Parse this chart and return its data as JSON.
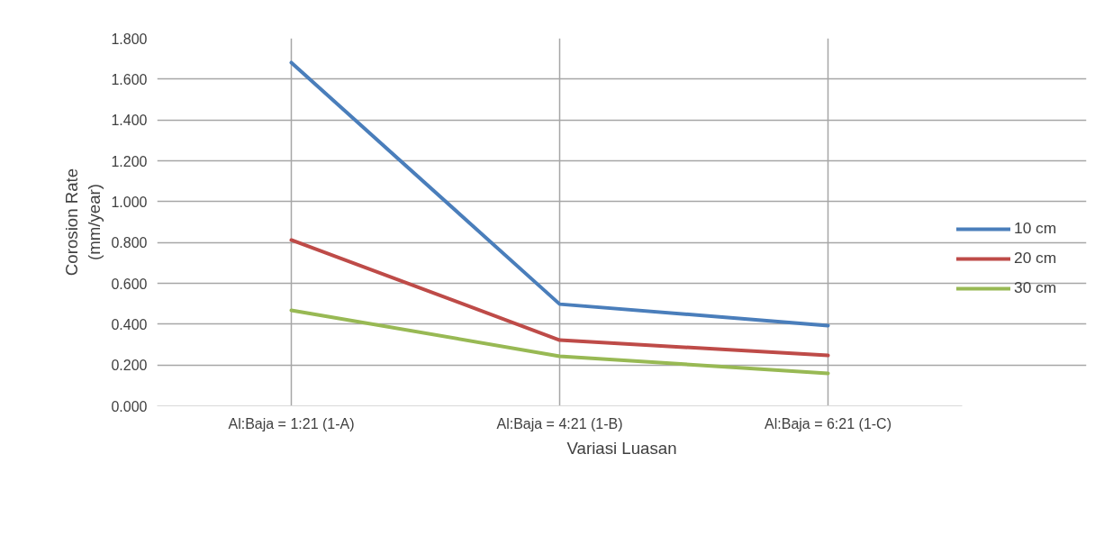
{
  "chart_data": {
    "type": "line",
    "xlabel": "Variasi Luasan",
    "ylabel": "Corosion Rate\n(mm/year)",
    "categories": [
      "Al:Baja = 1:21 (1-A)",
      "Al:Baja = 4:21 (1-B)",
      "Al:Baja = 6:21 (1-C)"
    ],
    "series": [
      {
        "name": "10 cm",
        "color": "#4a7ebb",
        "values": [
          1.681,
          0.498,
          0.393
        ]
      },
      {
        "name": "20 cm",
        "color": "#be4b48",
        "values": [
          0.812,
          0.322,
          0.247
        ]
      },
      {
        "name": "30 cm",
        "color": "#98b954",
        "values": [
          0.468,
          0.243,
          0.159
        ]
      }
    ],
    "ylim": [
      0,
      1.8
    ],
    "yticks": [
      {
        "value": 0,
        "label": "0.000"
      },
      {
        "value": 0.2,
        "label": "0.200"
      },
      {
        "value": 0.4,
        "label": "0.400"
      },
      {
        "value": 0.6,
        "label": "0.600"
      },
      {
        "value": 0.8,
        "label": "0.800"
      },
      {
        "value": 1.0,
        "label": "1.000"
      },
      {
        "value": 1.2,
        "label": "1.200"
      },
      {
        "value": 1.4,
        "label": "1.400"
      },
      {
        "value": 1.6,
        "label": "1.600"
      },
      {
        "value": 1.8,
        "label": "1.800"
      }
    ],
    "grid": true,
    "legend": "right",
    "marker": "none",
    "line_style": "solid"
  }
}
